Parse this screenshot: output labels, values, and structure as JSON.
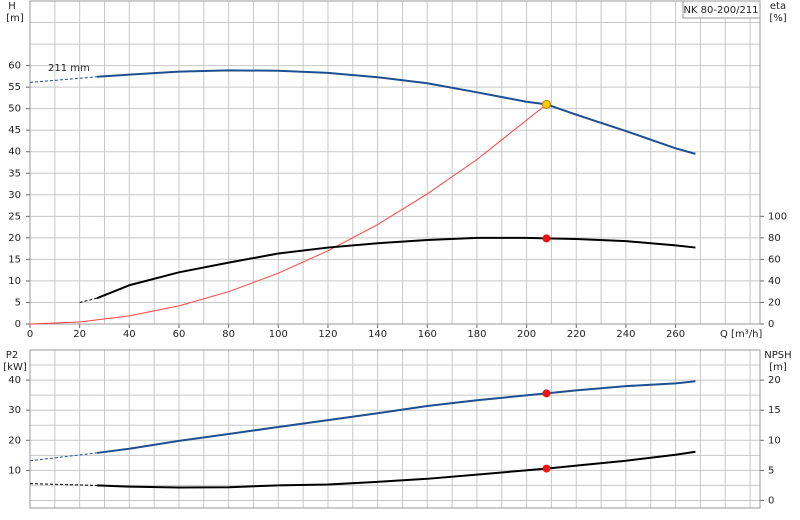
{
  "chart_data": [
    {
      "type": "line",
      "title": "NK 80-200/211",
      "ylabel": "H",
      "yunit": "[m]",
      "y2label": "eta",
      "y2unit": "[%]",
      "xlabel": "Q [m³/h]",
      "curve_label": "211 mm",
      "xlim": [
        0,
        294
      ],
      "xticks": [
        0,
        20,
        40,
        60,
        80,
        100,
        120,
        140,
        160,
        180,
        200,
        220,
        240,
        260
      ],
      "xgrid": [
        10,
        20,
        30,
        40,
        50,
        60,
        70,
        80,
        90,
        100,
        110,
        120,
        130,
        140,
        150,
        160,
        170,
        180,
        190,
        200,
        210,
        220,
        230,
        240,
        250,
        260,
        270,
        280,
        290
      ],
      "ylim": [
        0,
        75
      ],
      "yticks": [
        0,
        5,
        10,
        15,
        20,
        25,
        30,
        35,
        40,
        45,
        50,
        55,
        60
      ],
      "ygrid": [
        65,
        70
      ],
      "y2lim": [
        0,
        300
      ],
      "y2ticks": [
        0,
        20,
        40,
        60,
        80,
        100
      ],
      "series": [
        {
          "color": "#1f4f8f",
          "dash": true,
          "line_width": 1,
          "x": [
            0,
            27
          ],
          "values": [
            56.1,
            57.4
          ]
        },
        {
          "color": "#1f4f8f",
          "dash": false,
          "line_width": 2,
          "x": [
            27,
            40,
            60,
            80,
            100,
            120,
            140,
            160,
            180,
            200,
            208,
            220,
            240,
            260,
            268
          ],
          "values": [
            57.4,
            57.9,
            58.6,
            58.9,
            58.8,
            58.3,
            57.3,
            55.9,
            53.8,
            51.6,
            51,
            48.6,
            44.8,
            40.8,
            39.5
          ]
        },
        {
          "color": "#ff4040",
          "dash": false,
          "line_width": 1,
          "x": [
            0,
            20,
            40,
            60,
            80,
            100,
            120,
            140,
            160,
            180,
            208
          ],
          "values": [
            0,
            0.47,
            1.9,
            4.2,
            7.5,
            11.8,
            17,
            23.1,
            30.2,
            38.2,
            51
          ]
        },
        {
          "color": "#000000",
          "dash": true,
          "line_width": 1,
          "axis": "y2",
          "x": [
            20,
            27
          ],
          "values": [
            20,
            24
          ]
        },
        {
          "color": "#000000",
          "dash": false,
          "line_width": 2,
          "axis": "y2",
          "x": [
            27,
            40,
            60,
            80,
            100,
            120,
            140,
            160,
            180,
            200,
            208,
            220,
            240,
            260,
            268
          ],
          "values": [
            24,
            36,
            48,
            57,
            65.5,
            71,
            75,
            78,
            80,
            80,
            79.5,
            79,
            77,
            73,
            71
          ]
        },
        {
          "mode": "markers",
          "color": "#ffcc00",
          "x": [
            208
          ],
          "values": [
            51
          ]
        },
        {
          "mode": "markers",
          "color": "#ee1111",
          "axis": "y2",
          "x": [
            208
          ],
          "values": [
            79.5
          ]
        }
      ]
    },
    {
      "type": "line",
      "ylabel": "P2",
      "yunit": "[kW]",
      "y2label": "NPSH",
      "y2unit": "[m]",
      "xlim": [
        0,
        294
      ],
      "xgrid": [
        10,
        20,
        30,
        40,
        50,
        60,
        70,
        80,
        90,
        100,
        110,
        120,
        130,
        140,
        150,
        160,
        170,
        180,
        190,
        200,
        210,
        220,
        230,
        240,
        250,
        260,
        270,
        280,
        290
      ],
      "ylim": [
        -2.5,
        50
      ],
      "yticks": [
        10,
        20,
        30,
        40
      ],
      "ygrid": [
        0,
        5,
        15,
        25,
        35,
        45
      ],
      "y2lim": [
        -1.25,
        25
      ],
      "y2ticks": [
        0,
        5,
        10,
        15,
        20
      ],
      "series": [
        {
          "color": "#1f4f8f",
          "dash": true,
          "line_width": 1,
          "x": [
            0,
            27
          ],
          "values": [
            13.2,
            15.8
          ]
        },
        {
          "color": "#1f4f8f",
          "dash": false,
          "line_width": 2,
          "x": [
            27,
            40,
            60,
            80,
            100,
            120,
            140,
            160,
            180,
            208,
            220,
            240,
            260,
            268
          ],
          "values": [
            15.8,
            17.2,
            19.8,
            22.1,
            24.4,
            26.7,
            29,
            31.4,
            33.3,
            35.6,
            36.6,
            38,
            38.9,
            39.6
          ]
        },
        {
          "color": "#000000",
          "dash": true,
          "line_width": 1,
          "axis": "y2",
          "x": [
            0,
            27
          ],
          "values": [
            2.8,
            2.5
          ]
        },
        {
          "color": "#000000",
          "dash": false,
          "line_width": 2,
          "axis": "y2",
          "x": [
            27,
            40,
            60,
            80,
            100,
            120,
            140,
            160,
            180,
            208,
            220,
            240,
            260,
            268
          ],
          "values": [
            2.5,
            2.3,
            2.15,
            2.2,
            2.5,
            2.65,
            3.1,
            3.6,
            4.3,
            5.3,
            5.8,
            6.6,
            7.6,
            8.1
          ]
        },
        {
          "mode": "markers",
          "color": "#ee1111",
          "x": [
            208
          ],
          "values": [
            35.6
          ]
        },
        {
          "mode": "markers",
          "color": "#ee1111",
          "axis": "y2",
          "x": [
            208
          ],
          "values": [
            5.3
          ]
        }
      ]
    }
  ]
}
